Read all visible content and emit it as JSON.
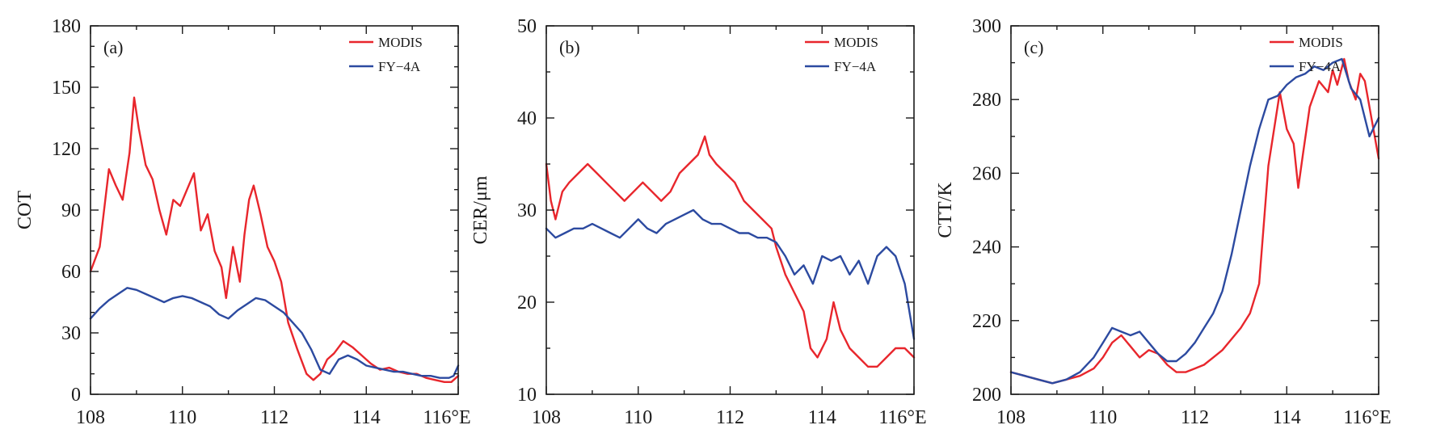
{
  "colors": {
    "modis": "#e8262c",
    "fy4a": "#2c4aa0",
    "axis": "#1a1a1a"
  },
  "chart_data": [
    {
      "type": "line",
      "panel_label": "(a)",
      "ylabel": "COT",
      "xlim": [
        108,
        116
      ],
      "ylim": [
        0,
        180
      ],
      "xticks": [
        108,
        110,
        112,
        114,
        116
      ],
      "xtick_labels": [
        "108",
        "110",
        "112",
        "114",
        "116°E"
      ],
      "yticks": [
        0,
        30,
        60,
        90,
        120,
        150,
        180
      ],
      "ytick_labels": [
        "0",
        "30",
        "60",
        "90",
        "120",
        "150",
        "180"
      ],
      "legend": "top-right",
      "series": [
        {
          "name": "MODIS",
          "color": "#e8262c",
          "x": [
            108.0,
            108.2,
            108.4,
            108.55,
            108.7,
            108.85,
            108.95,
            109.05,
            109.2,
            109.35,
            109.5,
            109.65,
            109.8,
            109.95,
            110.1,
            110.25,
            110.4,
            110.55,
            110.7,
            110.85,
            110.95,
            111.1,
            111.25,
            111.35,
            111.45,
            111.55,
            111.7,
            111.85,
            112.0,
            112.15,
            112.3,
            112.5,
            112.7,
            112.85,
            113.0,
            113.15,
            113.3,
            113.5,
            113.7,
            113.9,
            114.1,
            114.3,
            114.5,
            114.7,
            114.9,
            115.1,
            115.3,
            115.5,
            115.7,
            115.85,
            116.0
          ],
          "y": [
            60,
            72,
            110,
            102,
            95,
            118,
            145,
            130,
            112,
            105,
            90,
            78,
            95,
            92,
            100,
            108,
            80,
            88,
            70,
            62,
            47,
            72,
            55,
            78,
            95,
            102,
            88,
            72,
            65,
            55,
            35,
            22,
            10,
            7,
            10,
            17,
            20,
            26,
            23,
            19,
            15,
            12,
            13,
            11,
            10,
            10,
            8,
            7,
            6,
            6,
            9
          ]
        },
        {
          "name": "FY−4A",
          "color": "#2c4aa0",
          "x": [
            108.0,
            108.2,
            108.4,
            108.6,
            108.8,
            109.0,
            109.2,
            109.4,
            109.6,
            109.8,
            110.0,
            110.2,
            110.4,
            110.6,
            110.8,
            111.0,
            111.2,
            111.4,
            111.6,
            111.8,
            112.0,
            112.2,
            112.4,
            112.6,
            112.8,
            113.0,
            113.2,
            113.4,
            113.6,
            113.8,
            114.0,
            114.2,
            114.4,
            114.6,
            114.8,
            115.0,
            115.2,
            115.4,
            115.6,
            115.8,
            115.9,
            116.0
          ],
          "y": [
            37,
            42,
            46,
            49,
            52,
            51,
            49,
            47,
            45,
            47,
            48,
            47,
            45,
            43,
            39,
            37,
            41,
            44,
            47,
            46,
            43,
            40,
            35,
            30,
            22,
            12,
            10,
            17,
            19,
            17,
            14,
            13,
            12,
            11,
            11,
            10,
            9,
            9,
            8,
            8,
            9,
            14
          ]
        }
      ]
    },
    {
      "type": "line",
      "panel_label": "(b)",
      "ylabel": "CER/μm",
      "xlim": [
        108,
        116
      ],
      "ylim": [
        10,
        50
      ],
      "xticks": [
        108,
        110,
        112,
        114,
        116
      ],
      "xtick_labels": [
        "108",
        "110",
        "112",
        "114",
        "116°E"
      ],
      "yticks": [
        10,
        20,
        30,
        40,
        50
      ],
      "ytick_labels": [
        "10",
        "20",
        "30",
        "40",
        "50"
      ],
      "legend": "top-right",
      "series": [
        {
          "name": "MODIS",
          "color": "#e8262c",
          "x": [
            108.0,
            108.1,
            108.2,
            108.35,
            108.5,
            108.7,
            108.9,
            109.1,
            109.3,
            109.5,
            109.7,
            109.9,
            110.1,
            110.3,
            110.5,
            110.7,
            110.9,
            111.1,
            111.3,
            111.45,
            111.55,
            111.7,
            111.9,
            112.1,
            112.3,
            112.5,
            112.7,
            112.9,
            113.0,
            113.2,
            113.4,
            113.6,
            113.75,
            113.9,
            114.1,
            114.25,
            114.4,
            114.6,
            114.8,
            115.0,
            115.2,
            115.4,
            115.6,
            115.8,
            116.0
          ],
          "y": [
            35,
            31,
            29,
            32,
            33,
            34,
            35,
            34,
            33,
            32,
            31,
            32,
            33,
            32,
            31,
            32,
            34,
            35,
            36,
            38,
            36,
            35,
            34,
            33,
            31,
            30,
            29,
            28,
            26,
            23,
            21,
            19,
            15,
            14,
            16,
            20,
            17,
            15,
            14,
            13,
            13,
            14,
            15,
            15,
            14
          ]
        },
        {
          "name": "FY−4A",
          "color": "#2c4aa0",
          "x": [
            108.0,
            108.2,
            108.4,
            108.6,
            108.8,
            109.0,
            109.2,
            109.4,
            109.6,
            109.8,
            110.0,
            110.2,
            110.4,
            110.6,
            110.8,
            111.0,
            111.2,
            111.4,
            111.6,
            111.8,
            112.0,
            112.2,
            112.4,
            112.6,
            112.8,
            113.0,
            113.2,
            113.4,
            113.6,
            113.8,
            114.0,
            114.2,
            114.4,
            114.6,
            114.8,
            115.0,
            115.2,
            115.4,
            115.6,
            115.8,
            115.9,
            116.0
          ],
          "y": [
            28,
            27,
            27.5,
            28,
            28,
            28.5,
            28,
            27.5,
            27,
            28,
            29,
            28,
            27.5,
            28.5,
            29,
            29.5,
            30,
            29,
            28.5,
            28.5,
            28,
            27.5,
            27.5,
            27,
            27,
            26.5,
            25,
            23,
            24,
            22,
            25,
            24.5,
            25,
            23,
            24.5,
            22,
            25,
            26,
            25,
            22,
            19,
            16
          ]
        }
      ]
    },
    {
      "type": "line",
      "panel_label": "(c)",
      "ylabel": "CTT/K",
      "xlim": [
        108,
        116
      ],
      "ylim": [
        200,
        300
      ],
      "xticks": [
        108,
        110,
        112,
        114,
        116
      ],
      "xtick_labels": [
        "108",
        "110",
        "112",
        "114",
        "116°E"
      ],
      "yticks": [
        200,
        220,
        240,
        260,
        280,
        300
      ],
      "ytick_labels": [
        "200",
        "220",
        "240",
        "260",
        "280",
        "300"
      ],
      "legend": "top-right",
      "series": [
        {
          "name": "MODIS",
          "color": "#e8262c",
          "x": [
            108.0,
            108.3,
            108.6,
            108.9,
            109.2,
            109.5,
            109.8,
            110.0,
            110.2,
            110.4,
            110.6,
            110.8,
            111.0,
            111.2,
            111.4,
            111.6,
            111.8,
            112.0,
            112.2,
            112.4,
            112.6,
            112.8,
            113.0,
            113.2,
            113.4,
            113.6,
            113.7,
            113.85,
            114.0,
            114.15,
            114.25,
            114.35,
            114.5,
            114.7,
            114.9,
            115.0,
            115.1,
            115.25,
            115.35,
            115.5,
            115.6,
            115.7,
            115.8,
            116.0
          ],
          "y": [
            206,
            205,
            204,
            203,
            204,
            205,
            207,
            210,
            214,
            216,
            213,
            210,
            212,
            211,
            208,
            206,
            206,
            207,
            208,
            210,
            212,
            215,
            218,
            222,
            230,
            262,
            270,
            282,
            272,
            268,
            256,
            265,
            278,
            285,
            282,
            288,
            284,
            291,
            285,
            280,
            287,
            285,
            278,
            264
          ]
        },
        {
          "name": "FY−4A",
          "color": "#2c4aa0",
          "x": [
            108.0,
            108.3,
            108.6,
            108.9,
            109.2,
            109.5,
            109.8,
            110.0,
            110.2,
            110.4,
            110.6,
            110.8,
            111.0,
            111.2,
            111.4,
            111.6,
            111.8,
            112.0,
            112.2,
            112.4,
            112.6,
            112.8,
            113.0,
            113.2,
            113.4,
            113.6,
            113.8,
            114.0,
            114.2,
            114.4,
            114.6,
            114.8,
            115.0,
            115.2,
            115.4,
            115.6,
            115.8,
            116.0
          ],
          "y": [
            206,
            205,
            204,
            203,
            204,
            206,
            210,
            214,
            218,
            217,
            216,
            217,
            214,
            211,
            209,
            209,
            211,
            214,
            218,
            222,
            228,
            238,
            250,
            262,
            272,
            280,
            281,
            284,
            286,
            287,
            289,
            288,
            290,
            291,
            283,
            280,
            270,
            275
          ]
        }
      ]
    }
  ]
}
